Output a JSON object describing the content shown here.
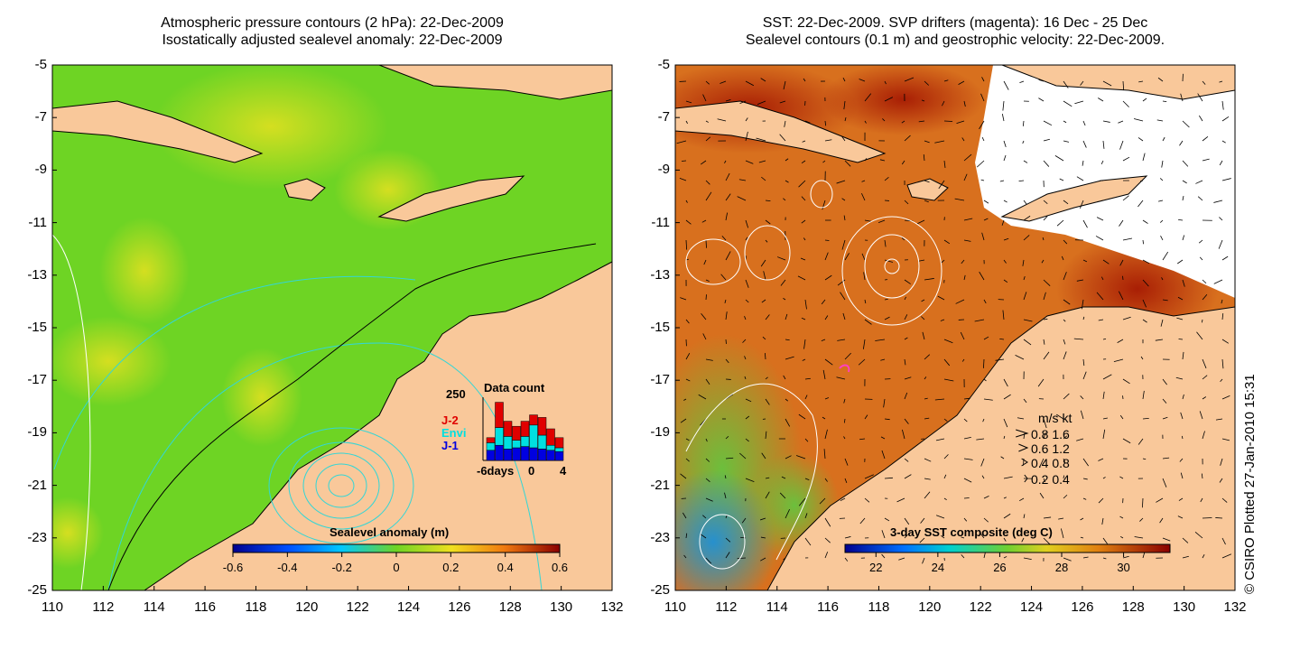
{
  "panels": {
    "left": {
      "title_line1": "Atmospheric pressure contours (2 hPa): 22-Dec-2009",
      "title_line2": "Isostatically adjusted sealevel anomaly: 22-Dec-2009",
      "colorbar_title": "Sealevel anomaly (m)",
      "colorbar_ticks": [
        "-0.6",
        "-0.4",
        "-0.2",
        "0",
        "0.2",
        "0.4",
        "0.6"
      ],
      "colorbar_range": [
        -0.6,
        0.6
      ]
    },
    "right": {
      "title_line1": "SST: 22-Dec-2009. SVP drifters (magenta): 16 Dec - 25 Dec",
      "title_line2": "Sealevel contours (0.1 m) and geostrophic velocity: 22-Dec-2009.",
      "colorbar_title": "3-day SST composite (deg C)",
      "colorbar_ticks": [
        "22",
        "24",
        "26",
        "28",
        "30"
      ],
      "colorbar_range": [
        21,
        31.5
      ]
    }
  },
  "axes": {
    "lat_labels": [
      "-5",
      "-7",
      "-9",
      "-11",
      "-13",
      "-15",
      "-17",
      "-19",
      "-21",
      "-23",
      "-25"
    ],
    "lon_labels": [
      "110",
      "112",
      "114",
      "116",
      "118",
      "120",
      "122",
      "124",
      "126",
      "128",
      "130",
      "132"
    ],
    "lat_range": [
      -25,
      -5
    ],
    "lon_range": [
      110,
      132
    ]
  },
  "data_count_inset": {
    "title": "Data count",
    "ymax_label": "250",
    "x_labels": [
      "-6days",
      "0",
      "4"
    ],
    "legend": [
      {
        "label": "J-2",
        "color": "#e00000"
      },
      {
        "label": "Envi",
        "color": "#00e0e0"
      },
      {
        "label": "J-1",
        "color": "#0000e0"
      }
    ],
    "bars": [
      {
        "day": -6,
        "j1": 40,
        "envi": 30,
        "j2": 20
      },
      {
        "day": -5,
        "j1": 60,
        "envi": 70,
        "j2": 100
      },
      {
        "day": -4,
        "j1": 45,
        "envi": 50,
        "j2": 60
      },
      {
        "day": -3,
        "j1": 50,
        "envi": 30,
        "j2": 55
      },
      {
        "day": -2,
        "j1": 55,
        "envi": 40,
        "j2": 60
      },
      {
        "day": -1,
        "j1": 50,
        "envi": 90,
        "j2": 40
      },
      {
        "day": 0,
        "j1": 45,
        "envi": 55,
        "j2": 70
      },
      {
        "day": 1,
        "j1": 40,
        "envi": 20,
        "j2": 65
      },
      {
        "day": 2,
        "j1": 35,
        "envi": 15,
        "j2": 40
      }
    ]
  },
  "velocity_legend": {
    "header": "m/s  kt",
    "rows": [
      "0.8  1.6",
      "0.6  1.2",
      "0.4  0.8",
      "0.2  0.4"
    ],
    "speeds": [
      0.8,
      0.6,
      0.4,
      0.2
    ]
  },
  "credit": "© CSIRO Plotted 27-Jan-2010 15:31",
  "colors": {
    "land": "#f9c89a",
    "anomaly_green": "#6ed424",
    "sst_orange": "#d8701e",
    "contour_cyan": "#33d6d6"
  }
}
